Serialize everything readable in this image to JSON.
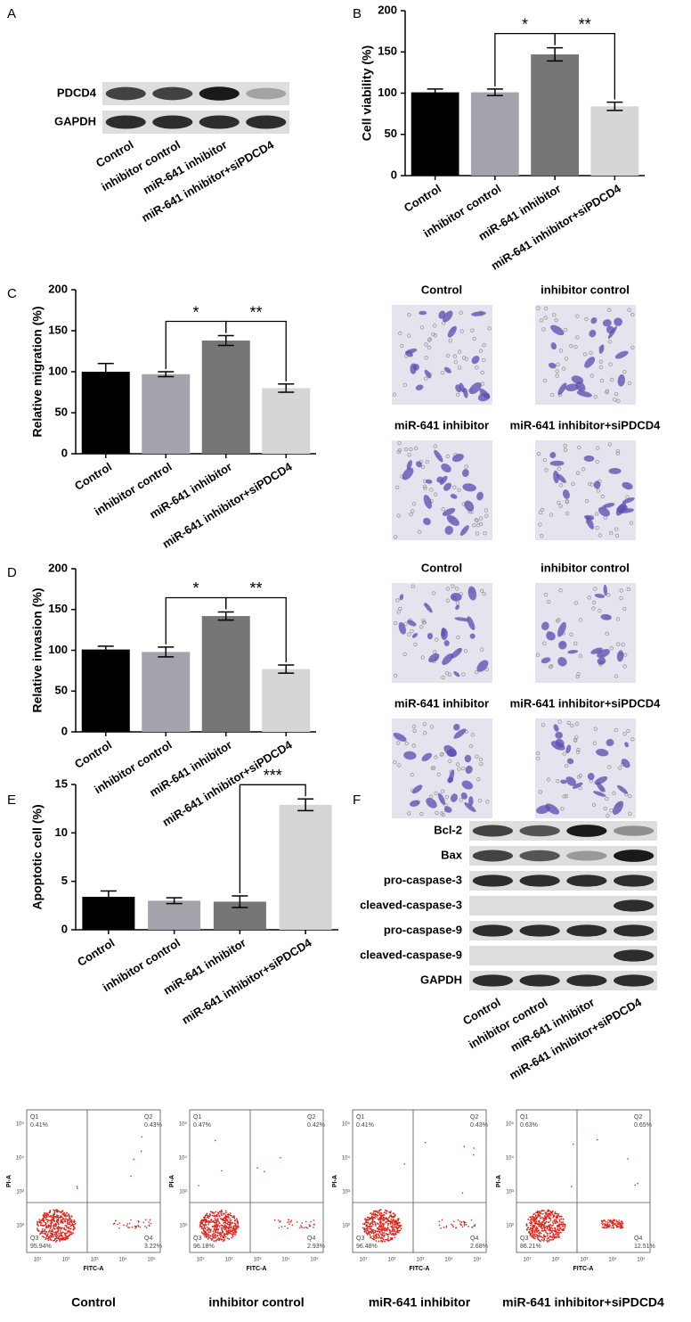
{
  "panel_labels": [
    "A",
    "B",
    "C",
    "D",
    "E",
    "F"
  ],
  "blot_a": {
    "rows": [
      "PDCD4",
      "GAPDH"
    ],
    "lanes": [
      "Control",
      "inhibitor control",
      "miR-641 inhibitor",
      "miR-641 inhibitor+siPDCD4"
    ]
  },
  "chart_data": [
    {
      "type": "bar",
      "y_label": "Cell viability (%)",
      "categories": [
        "Control",
        "inhibitor control",
        "miR-641 inhibitor",
        "miR-641 inhibitor+siPDCD4"
      ],
      "values": [
        101,
        101,
        147,
        84
      ],
      "errors": [
        4,
        4,
        8,
        5
      ],
      "colors": [
        "#000000",
        "#a3a3ab",
        "#767676",
        "#d6d6d6"
      ],
      "ylim": [
        0,
        200
      ],
      "yticks": [
        0,
        50,
        100,
        150,
        200
      ],
      "significance": [
        {
          "label": "*",
          "from": 1,
          "to": 2
        },
        {
          "label": "**",
          "from": 2,
          "to": 3
        }
      ]
    },
    {
      "type": "bar",
      "y_label": "Relative migration (%)",
      "categories": [
        "Control",
        "inhibitor control",
        "miR-641 inhibitor",
        "miR-641 inhibitor+siPDCD4"
      ],
      "values": [
        100,
        97,
        138,
        80
      ],
      "errors": [
        10,
        3,
        6,
        5
      ],
      "colors": [
        "#000000",
        "#a3a3ab",
        "#767676",
        "#d6d6d6"
      ],
      "ylim": [
        0,
        200
      ],
      "yticks": [
        0,
        50,
        100,
        150,
        200
      ],
      "significance": [
        {
          "label": "*",
          "from": 1,
          "to": 2
        },
        {
          "label": "**",
          "from": 2,
          "to": 3
        }
      ]
    },
    {
      "type": "bar",
      "y_label": "Relative invasion (%)",
      "categories": [
        "Control",
        "inhibitor control",
        "miR-641 inhibitor",
        "miR-641 inhibitor+siPDCD4"
      ],
      "values": [
        101,
        98,
        142,
        77
      ],
      "errors": [
        4,
        6,
        5,
        5
      ],
      "colors": [
        "#000000",
        "#a3a3ab",
        "#767676",
        "#d6d6d6"
      ],
      "ylim": [
        0,
        200
      ],
      "yticks": [
        0,
        50,
        100,
        150,
        200
      ],
      "significance": [
        {
          "label": "*",
          "from": 1,
          "to": 2
        },
        {
          "label": "**",
          "from": 2,
          "to": 3
        }
      ]
    },
    {
      "type": "bar",
      "y_label": "Apoptotic cell (%)",
      "categories": [
        "Control",
        "inhibitor control",
        "miR-641 inhibitor",
        "miR-641 inhibitor+siPDCD4"
      ],
      "values": [
        3.4,
        3.0,
        2.9,
        12.9
      ],
      "errors": [
        0.6,
        0.3,
        0.6,
        0.6
      ],
      "colors": [
        "#000000",
        "#a3a3ab",
        "#767676",
        "#d6d6d6"
      ],
      "ylim": [
        0,
        15
      ],
      "yticks": [
        0,
        5,
        10,
        15
      ],
      "significance": [
        {
          "label": "***",
          "from": 2,
          "to": 3
        }
      ]
    }
  ],
  "micrographs": [
    {
      "labels": [
        "Control",
        "inhibitor control",
        "miR-641 inhibitor",
        "miR-641 inhibitor+siPDCD4"
      ]
    },
    {
      "labels": [
        "Control",
        "inhibitor control",
        "miR-641 inhibitor",
        "miR-641 inhibitor+siPDCD4"
      ]
    }
  ],
  "blot_f": {
    "rows": [
      "Bcl-2",
      "Bax",
      "pro-caspase-3",
      "cleaved-caspase-3",
      "pro-caspase-9",
      "cleaved-caspase-9",
      "GAPDH"
    ],
    "lanes": [
      "Control",
      "inhibitor control",
      "miR-641 inhibitor",
      "miR-641 inhibitor+siPDCD4"
    ]
  },
  "flow": {
    "x_label": "FITC-A",
    "y_label": "PI-A",
    "x_ticks": [
      "10¹",
      "10²",
      "10³",
      "10⁴",
      "10⁵"
    ],
    "y_ticks": [
      "10²",
      "10³",
      "10⁴",
      "10⁵"
    ],
    "quadrant_names": [
      "Q1",
      "Q2",
      "Q3",
      "Q4"
    ],
    "panels": [
      {
        "title": "Control",
        "percents": [
          "0.41%",
          "0.43%",
          "95.94%",
          "3.22%"
        ]
      },
      {
        "title": "inhibitor control",
        "percents": [
          "0.47%",
          "0.42%",
          "96.18%",
          "2.93%"
        ]
      },
      {
        "title": "miR-641 inhibitor",
        "percents": [
          "0.41%",
          "0.43%",
          "96.48%",
          "2.68%"
        ]
      },
      {
        "title": "miR-641 inhibitor+siPDCD4",
        "percents": [
          "0.63%",
          "0.65%",
          "86.21%",
          "12.51%"
        ]
      }
    ]
  }
}
